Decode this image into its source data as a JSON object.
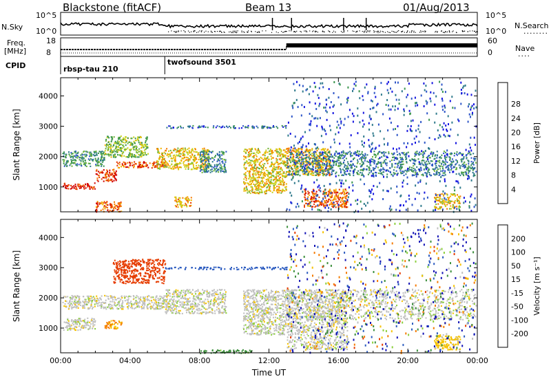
{
  "header": {
    "station": "Blackstone (fitACF)",
    "beam": "Beam 13",
    "date": "01/Aug/2013"
  },
  "top_panels": {
    "nsky_label": "N.Sky",
    "nsearch_label": "N.Search",
    "nsearch_line": "........",
    "freq_label_1": "Freq.",
    "freq_label_2": "[MHz]",
    "nave_label": "Nave",
    "nave_line": "....",
    "cpid_label": "CPID",
    "left_ticks": [
      "10^5",
      "10^0",
      "18",
      "8"
    ],
    "right_ticks": [
      "10^5",
      "10^0",
      "60",
      "0"
    ],
    "cpid_modes": [
      {
        "name": "rbsp-tau 210",
        "start_hour": 0
      },
      {
        "name": "twofsound 3501",
        "start_hour": 6
      }
    ]
  },
  "chart_data": [
    {
      "type": "heatmap",
      "title": "Power",
      "ylabel": "Slant Range [km]",
      "xlabel": "",
      "x_range_hours": [
        0,
        24
      ],
      "ylim": [
        180,
        4600
      ],
      "y_ticks": [
        1000,
        2000,
        3000,
        4000
      ],
      "colorbar": {
        "label": "Power [dB]",
        "ticks": [
          4,
          8,
          12,
          16,
          20,
          24,
          28
        ],
        "colors": [
          "#1414e0",
          "#2d55c8",
          "#2f7a8c",
          "#3c9650",
          "#6fb43a",
          "#c7d21e",
          "#f3b300",
          "#f57a00",
          "#e63c00",
          "#d20000"
        ]
      },
      "scatter_regions": [
        {
          "t0": 0.1,
          "t1": 2.0,
          "r0": 950,
          "r1": 1150,
          "level": 28
        },
        {
          "t0": 2.0,
          "t1": 3.2,
          "r0": 1200,
          "r1": 1600,
          "level": 26
        },
        {
          "t0": 3.2,
          "t1": 6.0,
          "r0": 1650,
          "r1": 1850,
          "level": 24
        },
        {
          "t0": 0.1,
          "t1": 2.5,
          "r0": 1700,
          "r1": 2200,
          "level": 10
        },
        {
          "t0": 2.5,
          "t1": 5.0,
          "r0": 2000,
          "r1": 2700,
          "level": 14
        },
        {
          "t0": 5.5,
          "t1": 8.5,
          "r0": 1600,
          "r1": 2300,
          "level": 18
        },
        {
          "t0": 8.0,
          "t1": 9.5,
          "r0": 1500,
          "r1": 2200,
          "level": 8
        },
        {
          "t0": 10.5,
          "t1": 13.0,
          "r0": 800,
          "r1": 2300,
          "level": 18
        },
        {
          "t0": 13.0,
          "t1": 15.5,
          "r0": 1400,
          "r1": 2300,
          "level": 20
        },
        {
          "t0": 14.0,
          "t1": 16.5,
          "r0": 350,
          "r1": 950,
          "level": 24
        },
        {
          "t0": 13.0,
          "t1": 23.9,
          "r0": 1400,
          "r1": 2200,
          "level": 8
        },
        {
          "t0": 21.5,
          "t1": 23.0,
          "r0": 300,
          "r1": 800,
          "level": 18
        },
        {
          "t0": 6.5,
          "t1": 7.5,
          "r0": 350,
          "r1": 700,
          "level": 20
        },
        {
          "t0": 2.0,
          "t1": 3.5,
          "r0": 200,
          "r1": 550,
          "level": 24
        },
        {
          "t0": 6.0,
          "t1": 13.0,
          "r0": 2960,
          "r1": 3040,
          "level": 6
        },
        {
          "t0": 13.0,
          "t1": 23.9,
          "r0": 200,
          "r1": 4500,
          "level": 5
        }
      ]
    },
    {
      "type": "heatmap",
      "title": "Velocity",
      "ylabel": "Slant Range [km]",
      "xlabel": "Time UT",
      "x_ticks": [
        "00:00",
        "04:00",
        "08:00",
        "12:00",
        "16:00",
        "20:00",
        "00:00"
      ],
      "x_range_hours": [
        0,
        24
      ],
      "ylim": [
        180,
        4600
      ],
      "y_ticks": [
        1000,
        2000,
        3000,
        4000
      ],
      "colorbar": {
        "label": "Velocity [m s^-1]",
        "ticks": [
          200,
          100,
          50,
          15,
          -15,
          -50,
          -100,
          -200
        ],
        "colors": [
          "#1010b4",
          "#2a5abf",
          "#3c8f3c",
          "#8ccf3c",
          "#c0c0c0",
          "#f5c200",
          "#f57a00",
          "#e63c00",
          "#d20000"
        ]
      },
      "scatter_regions": [
        {
          "t0": 0.1,
          "t1": 2.0,
          "r0": 950,
          "r1": 1350,
          "level": 0
        },
        {
          "t0": 0.1,
          "t1": 6.0,
          "r0": 1650,
          "r1": 2100,
          "level": 0
        },
        {
          "t0": 2.5,
          "t1": 3.5,
          "r0": 1000,
          "r1": 1300,
          "level": -50
        },
        {
          "t0": 3.0,
          "t1": 6.0,
          "r0": 2500,
          "r1": 3300,
          "level": -150
        },
        {
          "t0": 6.0,
          "t1": 9.5,
          "r0": 1500,
          "r1": 2300,
          "level": 0
        },
        {
          "t0": 10.5,
          "t1": 13.0,
          "r0": 800,
          "r1": 2300,
          "level": 0
        },
        {
          "t0": 13.0,
          "t1": 16.5,
          "r0": 300,
          "r1": 2300,
          "level": 0
        },
        {
          "t0": 6.0,
          "t1": 13.0,
          "r0": 2960,
          "r1": 3040,
          "level": 150
        },
        {
          "t0": 13.0,
          "t1": 23.9,
          "r0": 1300,
          "r1": 2300,
          "level": 0
        },
        {
          "t0": 8.0,
          "t1": 11.0,
          "r0": 180,
          "r1": 300,
          "level": 70
        },
        {
          "t0": 21.5,
          "t1": 23.0,
          "r0": 300,
          "r1": 800,
          "level": -30
        },
        {
          "t0": 13.0,
          "t1": 23.9,
          "r0": 200,
          "r1": 4500,
          "level": 120
        }
      ]
    }
  ]
}
